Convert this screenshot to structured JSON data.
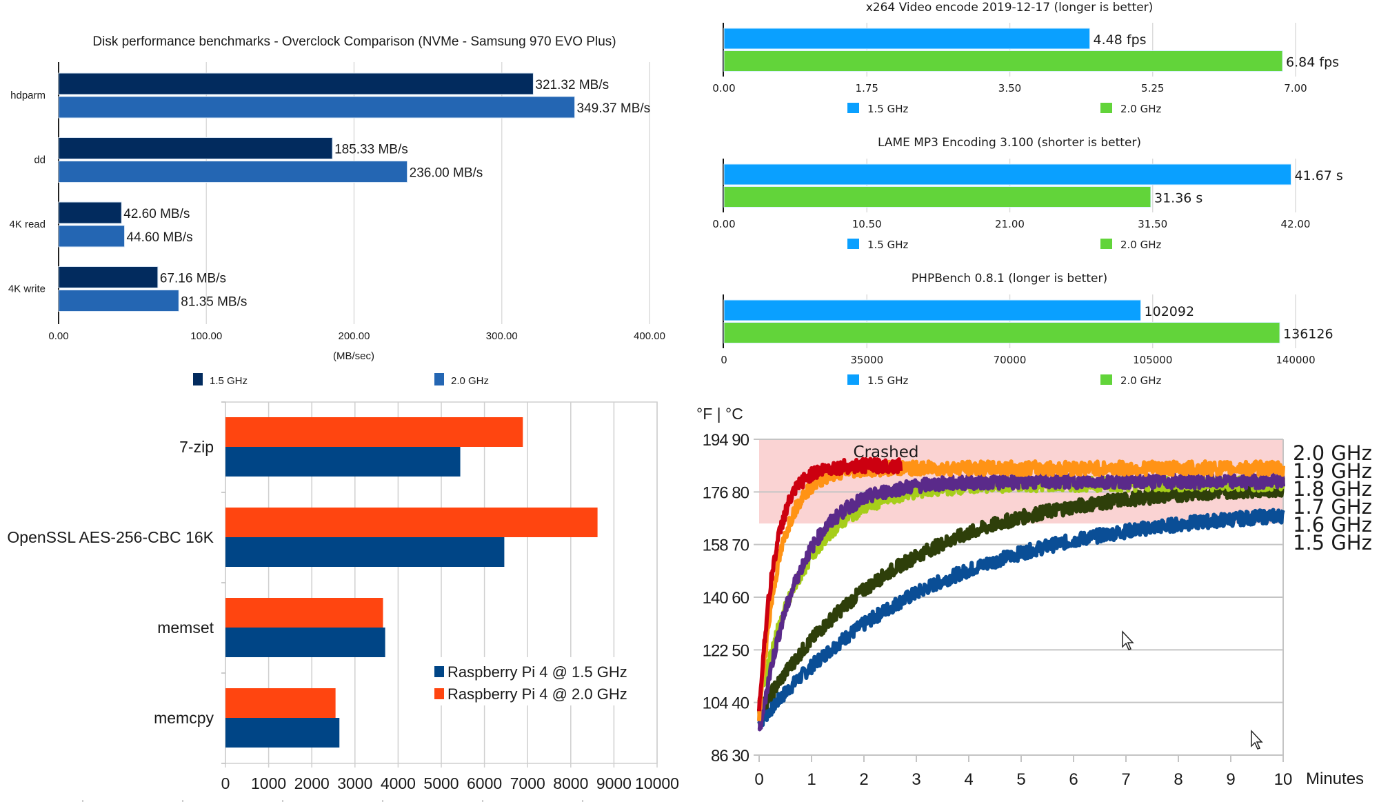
{
  "chart_data": [
    {
      "id": "disk",
      "type": "bar",
      "orientation": "horizontal",
      "title": "Disk performance benchmarks - Overclock Comparison (NVMe - Samsung 970 EVO Plus)",
      "xlabel": "(MB/sec)",
      "ylabel": "",
      "categories": [
        "hdparm",
        "dd",
        "4K read",
        "4K write"
      ],
      "xlim": [
        0,
        400
      ],
      "ticks": [
        "0.00",
        "100.00",
        "200.00",
        "300.00",
        "400.00"
      ],
      "tick_values": [
        0,
        100,
        200,
        300,
        400
      ],
      "grid": true,
      "legend_position": "bottom",
      "series": [
        {
          "name": "1.5 GHz",
          "color": "#022B5E",
          "values": [
            321.32,
            185.33,
            42.6,
            67.16
          ],
          "labels": [
            "321.32 MB/s",
            "185.33 MB/s",
            "42.60 MB/s",
            "67.16 MB/s"
          ]
        },
        {
          "name": "2.0 GHz",
          "color": "#2466B3",
          "values": [
            349.37,
            236.0,
            44.6,
            81.35
          ],
          "labels": [
            "349.37 MB/s",
            "236.00 MB/s",
            "44.60 MB/s",
            "81.35 MB/s"
          ]
        }
      ]
    },
    {
      "id": "x264",
      "type": "bar",
      "orientation": "horizontal",
      "title": "x264 Video encode 2019-12-17 (longer is better)",
      "xlabel": "",
      "ylabel": "",
      "xlim": [
        0,
        7
      ],
      "ticks": [
        "0.00",
        "1.75",
        "3.50",
        "5.25",
        "7.00"
      ],
      "tick_values": [
        0,
        1.75,
        3.5,
        5.25,
        7
      ],
      "grid": true,
      "legend_position": "bottom",
      "series": [
        {
          "name": "1.5 GHz",
          "color": "#0AA0FF",
          "values": [
            4.48
          ],
          "labels": [
            "4.48 fps"
          ]
        },
        {
          "name": "2.0 GHz",
          "color": "#62D43A",
          "values": [
            6.84
          ],
          "labels": [
            "6.84 fps"
          ]
        }
      ]
    },
    {
      "id": "lame",
      "type": "bar",
      "orientation": "horizontal",
      "title": "LAME MP3 Encoding 3.100 (shorter is better)",
      "xlabel": "",
      "ylabel": "",
      "xlim": [
        0,
        42
      ],
      "ticks": [
        "0.00",
        "10.50",
        "21.00",
        "31.50",
        "42.00"
      ],
      "tick_values": [
        0,
        10.5,
        21,
        31.5,
        42
      ],
      "grid": true,
      "legend_position": "bottom",
      "series": [
        {
          "name": "1.5 GHz",
          "color": "#0AA0FF",
          "values": [
            41.67
          ],
          "labels": [
            "41.67 s"
          ]
        },
        {
          "name": "2.0 GHz",
          "color": "#62D43A",
          "values": [
            31.36
          ],
          "labels": [
            "31.36 s"
          ]
        }
      ]
    },
    {
      "id": "php",
      "type": "bar",
      "orientation": "horizontal",
      "title": "PHPBench 0.8.1 (longer is better)",
      "xlabel": "",
      "ylabel": "",
      "xlim": [
        0,
        140000
      ],
      "ticks": [
        "0",
        "35000",
        "70000",
        "105000",
        "140000"
      ],
      "tick_values": [
        0,
        35000,
        70000,
        105000,
        140000
      ],
      "grid": true,
      "legend_position": "bottom",
      "series": [
        {
          "name": "1.5 GHz",
          "color": "#0AA0FF",
          "values": [
            102092
          ],
          "labels": [
            "102092"
          ]
        },
        {
          "name": "2.0 GHz",
          "color": "#62D43A",
          "values": [
            136126
          ],
          "labels": [
            "136126"
          ]
        }
      ]
    },
    {
      "id": "cpu",
      "type": "bar",
      "orientation": "horizontal",
      "title": "",
      "xlabel": "",
      "ylabel": "",
      "categories": [
        "7-zip",
        "OpenSSL AES-256-CBC 16K",
        "memset",
        "memcpy"
      ],
      "xlim": [
        0,
        10000
      ],
      "ticks": [
        "0",
        "1000",
        "2000",
        "3000",
        "4000",
        "5000",
        "6000",
        "7000",
        "8000",
        "9000",
        "10000"
      ],
      "tick_values": [
        0,
        1000,
        2000,
        3000,
        4000,
        5000,
        6000,
        7000,
        8000,
        9000,
        10000
      ],
      "grid": true,
      "legend_position": "bottom-right (inside)",
      "series": [
        {
          "name": "Raspberry Pi 4 @ 2.0 GHz",
          "color": "#FF4510",
          "values": [
            6890,
            8620,
            3650,
            2550
          ]
        },
        {
          "name": "Raspberry Pi 4 @ 1.5 GHz",
          "color": "#004586",
          "values": [
            5440,
            6460,
            3700,
            2640
          ]
        }
      ],
      "legend_entries": [
        {
          "name": "Raspberry Pi 4 @ 1.5 GHz",
          "color": "#004586"
        },
        {
          "name": "Raspberry Pi 4 @ 2.0 GHz",
          "color": "#FF4510"
        }
      ]
    },
    {
      "id": "temp",
      "type": "line",
      "title": "",
      "xlabel": "Minutes",
      "ylabel": "°F | °C",
      "xlim": [
        0,
        10
      ],
      "ylim_c": [
        30,
        90
      ],
      "x_ticks": [
        "0",
        "1",
        "2",
        "3",
        "4",
        "5",
        "6",
        "7",
        "8",
        "9",
        "10"
      ],
      "y_ticks": [
        {
          "c": 90,
          "label": "194 90"
        },
        {
          "c": 80,
          "label": "176 80"
        },
        {
          "c": 70,
          "label": "158 70"
        },
        {
          "c": 60,
          "label": "140 60"
        },
        {
          "c": 50,
          "label": "122 50"
        },
        {
          "c": 40,
          "label": "104 40"
        },
        {
          "c": 30,
          "label": "86 30"
        }
      ],
      "grid": true,
      "shaded_region": {
        "label": "Crashed",
        "from_c": 74,
        "to_c": 90,
        "color": "#FAD3D3"
      },
      "legend_position": "right",
      "legend_labels": [
        "2.0 GHz",
        "1.9 GHz",
        "1.8 GHz",
        "1.7 GHz",
        "1.6 GHz",
        "1.5 GHz"
      ],
      "series": [
        {
          "name": "1.5 GHz",
          "color": "#0A4E96",
          "start_c": 36,
          "plateau_c": 77.5,
          "tau_min": 3.3,
          "end_min": 10
        },
        {
          "name": "1.6 GHz",
          "color": "#2E3F0A",
          "start_c": 38,
          "plateau_c": 81.5,
          "tau_min": 2.6,
          "end_min": 10
        },
        {
          "name": "1.7 GHz",
          "color": "#A6CE1A",
          "start_c": 40,
          "plateau_c": 81.5,
          "tau_min": 0.9,
          "end_min": 10
        },
        {
          "name": "1.8 GHz",
          "color": "#5A2A8A",
          "start_c": 34,
          "plateau_c": 82,
          "tau_min": 0.75,
          "end_min": 10
        },
        {
          "name": "1.9 GHz",
          "color": "#FF9315",
          "start_c": 37,
          "plateau_c": 84.5,
          "tau_min": 0.38,
          "end_min": 10
        },
        {
          "name": "2.0 GHz",
          "color": "#CC0010",
          "start_c": 38,
          "plateau_c": 85,
          "tau_min": 0.3,
          "end_min": 2.7
        }
      ]
    }
  ],
  "cursors": [
    {
      "name": "mouse-cursor-1"
    },
    {
      "name": "mouse-cursor-2"
    }
  ]
}
